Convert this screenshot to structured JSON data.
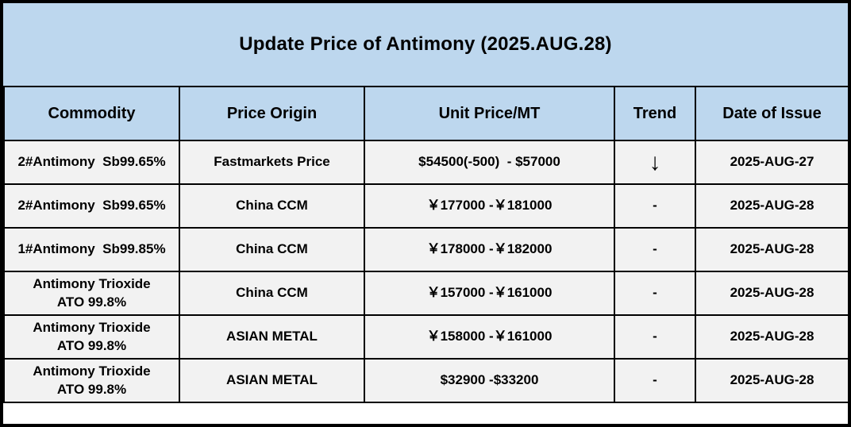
{
  "title": "Update Price of Antimony (2025.AUG.28)",
  "colors": {
    "title_bg": "#BDD7EE",
    "header_bg": "#BDD7EE",
    "row_bg": "#F2F2F2",
    "border": "#000000",
    "text": "#000000"
  },
  "table": {
    "columns": [
      "Commodity",
      "Price Origin",
      "Unit Price/MT",
      "Trend",
      "Date of Issue"
    ],
    "trend_down_glyph": "↓",
    "rows": [
      {
        "commodity": "2#Antimony  Sb99.65%",
        "origin": "Fastmarkets Price",
        "price": "$54500(-500)  - $57000",
        "trend": "↓",
        "date": "2025-AUG-27"
      },
      {
        "commodity": "2#Antimony  Sb99.65%",
        "origin": "China CCM",
        "price": "￥177000 -￥181000",
        "trend": "-",
        "date": "2025-AUG-28"
      },
      {
        "commodity": "1#Antimony  Sb99.85%",
        "origin": "China CCM",
        "price": "￥178000 -￥182000",
        "trend": "-",
        "date": "2025-AUG-28"
      },
      {
        "commodity": "Antimony Trioxide\nATO 99.8%",
        "origin": "China CCM",
        "price": "￥157000 -￥161000",
        "trend": "-",
        "date": "2025-AUG-28"
      },
      {
        "commodity": "Antimony Trioxide\nATO 99.8%",
        "origin": "ASIAN METAL",
        "price": "￥158000 -￥161000",
        "trend": "-",
        "date": "2025-AUG-28"
      },
      {
        "commodity": "Antimony Trioxide\nATO 99.8%",
        "origin": "ASIAN METAL",
        "price": "$32900 -$33200",
        "trend": "-",
        "date": "2025-AUG-28"
      }
    ]
  }
}
